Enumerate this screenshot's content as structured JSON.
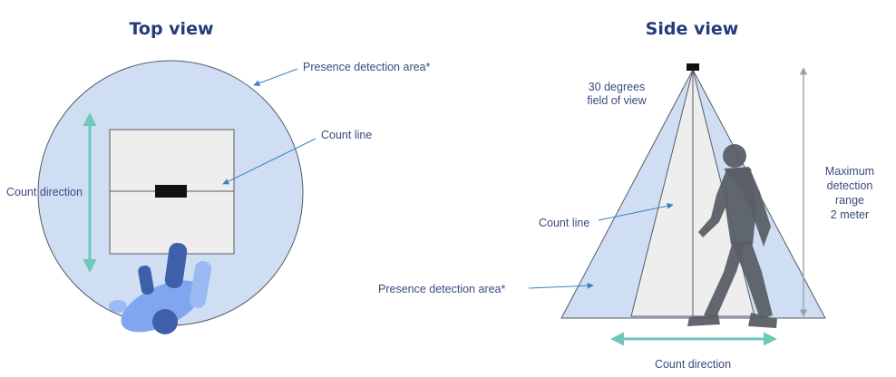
{
  "top_view": {
    "title": "Top view",
    "presence_label": "Presence detection area*",
    "count_line_label": "Count line",
    "count_direction_label": "Count direction"
  },
  "side_view": {
    "title": "Side view",
    "fov_label_line1": "30 degrees",
    "fov_label_line2": "field of view",
    "range_label_line1": "Maximum",
    "range_label_line2": "detection",
    "range_label_line3": "range",
    "range_label_line4": "2 meter",
    "count_line_label": "Count line",
    "presence_label": "Presence detection area*",
    "count_direction_label": "Count direction"
  },
  "colors": {
    "title": "#253a7a",
    "label_text": "#3b4b7e",
    "detection_area": "#cfdef2",
    "count_zone": "#eeeeee",
    "teal_arrow": "#6cc9b9",
    "pointer_arrow": "#3a82c4",
    "person_top": "#7fa6ee",
    "person_side": "#5a5f66",
    "sensor": "#111111"
  }
}
